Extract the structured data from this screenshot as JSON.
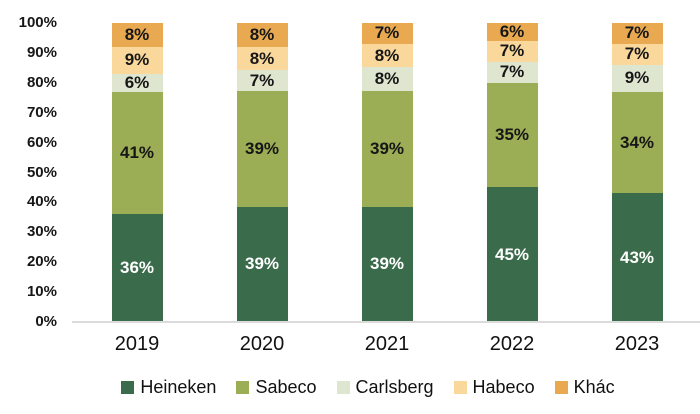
{
  "chart_data": {
    "type": "bar",
    "variant": "stacked-100-percent",
    "title": "",
    "xlabel": "",
    "ylabel": "",
    "grid": false,
    "categories": [
      "2019",
      "2020",
      "2021",
      "2022",
      "2023"
    ],
    "series": [
      {
        "name": "Heineken",
        "color": "#3A6B4A",
        "label_color": "#FFFFFF",
        "values": [
          36,
          39,
          39,
          45,
          43
        ]
      },
      {
        "name": "Sabeco",
        "color": "#9BAE55",
        "label_color": "#161616",
        "values": [
          41,
          39,
          39,
          35,
          34
        ]
      },
      {
        "name": "Carlsberg",
        "color": "#DFE6D0",
        "label_color": "#161616",
        "values": [
          6,
          7,
          8,
          7,
          9
        ]
      },
      {
        "name": "Habeco",
        "color": "#FAD89C",
        "label_color": "#161616",
        "values": [
          9,
          8,
          8,
          7,
          7
        ]
      },
      {
        "name": "Khác",
        "color": "#E8A951",
        "label_color": "#161616",
        "values": [
          8,
          8,
          7,
          6,
          7
        ]
      }
    ],
    "label_suffix": "%",
    "y_axis": {
      "min": 0,
      "max": 100,
      "step": 10,
      "tick_labels": [
        "0%",
        "10%",
        "20%",
        "30%",
        "40%",
        "50%",
        "60%",
        "70%",
        "80%",
        "90%",
        "100%"
      ]
    },
    "legend": {
      "position": "bottom",
      "entries": [
        "Heineken",
        "Sabeco",
        "Carlsberg",
        "Habeco",
        "Khác"
      ]
    }
  },
  "colors": {
    "background": "#FFFFFF",
    "axis_line": "#DBDBDB",
    "text": "#161616"
  }
}
